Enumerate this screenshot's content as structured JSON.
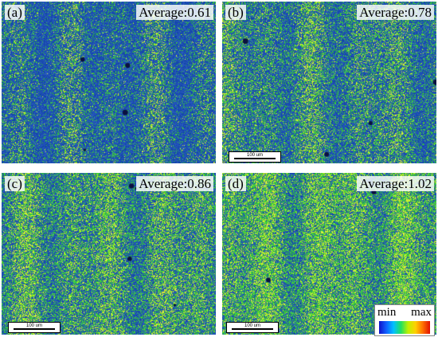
{
  "panels": [
    {
      "label": "(a)",
      "average": "Average:0.61",
      "scale_bar": "",
      "green_fraction": 0.3
    },
    {
      "label": "(b)",
      "average": "Average:0.78",
      "scale_bar": "100 um",
      "green_fraction": 0.4
    },
    {
      "label": "(c)",
      "average": "Average:0.86",
      "scale_bar": "100 um",
      "green_fraction": 0.48
    },
    {
      "label": "(d)",
      "average": "Average:1.02",
      "scale_bar": "100 um",
      "green_fraction": 0.56
    }
  ],
  "legend": {
    "min_label": "min",
    "max_label": "max"
  },
  "colors": {
    "background_blue": "#1e50b4",
    "green": "#3ccc3c",
    "yellow": "#d8f030"
  }
}
